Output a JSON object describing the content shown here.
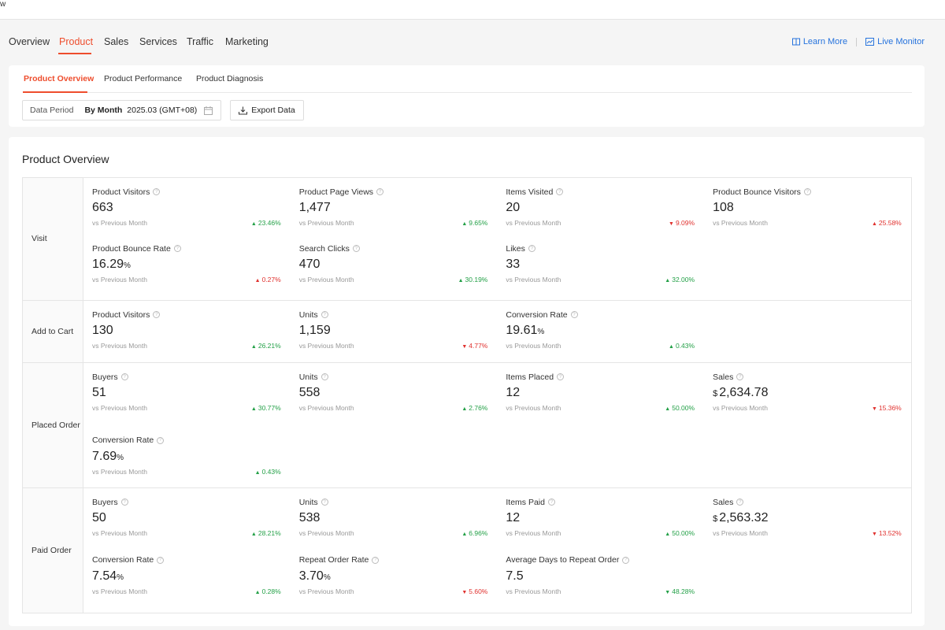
{
  "top_fragment": "w",
  "main_tabs": [
    "Overview",
    "Product",
    "Sales",
    "Services",
    "Traffic",
    "Marketing"
  ],
  "main_tab_active": "Product",
  "links": {
    "learn_more": "Learn More",
    "live_monitor": "Live Monitor"
  },
  "sub_tabs": [
    "Product Overview",
    "Product Performance",
    "Product Diagnosis"
  ],
  "sub_tab_active": "Product Overview",
  "filter": {
    "label": "Data Period",
    "mode": "By Month",
    "value": "2025.03 (GMT+08)",
    "export": "Export Data"
  },
  "section_title": "Product Overview",
  "compare_text": "vs Previous Month",
  "colors": {
    "accent": "#ee4d2d",
    "link": "#2673dd",
    "up": "#23a047",
    "down": "#e0312e"
  },
  "sections": [
    {
      "label": "Visit",
      "metrics": [
        {
          "label": "Product Visitors",
          "value": "663",
          "change": "23.46%",
          "dir": "up",
          "tone": "good"
        },
        {
          "label": "Product Page Views",
          "value": "1,477",
          "change": "9.65%",
          "dir": "up",
          "tone": "good"
        },
        {
          "label": "Items Visited",
          "value": "20",
          "change": "9.09%",
          "dir": "down",
          "tone": "bad"
        },
        {
          "label": "Product Bounce Visitors",
          "value": "108",
          "change": "25.58%",
          "dir": "up",
          "tone": "bad"
        },
        {
          "label": "Product Bounce Rate",
          "value": "16.29",
          "unit": "%",
          "change": "0.27%",
          "dir": "up",
          "tone": "bad"
        },
        {
          "label": "Search Clicks",
          "value": "470",
          "change": "30.19%",
          "dir": "up",
          "tone": "good"
        },
        {
          "label": "Likes",
          "value": "33",
          "change": "32.00%",
          "dir": "up",
          "tone": "good"
        }
      ]
    },
    {
      "label": "Add to Cart",
      "metrics": [
        {
          "label": "Product Visitors",
          "value": "130",
          "change": "26.21%",
          "dir": "up",
          "tone": "good"
        },
        {
          "label": "Units",
          "value": "1,159",
          "change": "4.77%",
          "dir": "down",
          "tone": "bad"
        },
        {
          "label": "Conversion Rate",
          "value": "19.61",
          "unit": "%",
          "change": "0.43%",
          "dir": "up",
          "tone": "good"
        }
      ]
    },
    {
      "label": "Placed Order",
      "metrics": [
        {
          "label": "Buyers",
          "value": "51",
          "change": "30.77%",
          "dir": "up",
          "tone": "good"
        },
        {
          "label": "Units",
          "value": "558",
          "change": "2.76%",
          "dir": "up",
          "tone": "good"
        },
        {
          "label": "Items Placed",
          "value": "12",
          "change": "50.00%",
          "dir": "up",
          "tone": "good"
        },
        {
          "label": "Sales",
          "currency": "$",
          "value": "2,634.78",
          "change": "15.36%",
          "dir": "down",
          "tone": "bad"
        },
        {
          "label": "Conversion Rate",
          "value": "7.69",
          "unit": "%",
          "change": "0.43%",
          "dir": "up",
          "tone": "good"
        }
      ]
    },
    {
      "label": "Paid Order",
      "metrics": [
        {
          "label": "Buyers",
          "value": "50",
          "change": "28.21%",
          "dir": "up",
          "tone": "good"
        },
        {
          "label": "Units",
          "value": "538",
          "change": "6.96%",
          "dir": "up",
          "tone": "good"
        },
        {
          "label": "Items Paid",
          "value": "12",
          "change": "50.00%",
          "dir": "up",
          "tone": "good"
        },
        {
          "label": "Sales",
          "currency": "$",
          "value": "2,563.32",
          "change": "13.52%",
          "dir": "down",
          "tone": "bad"
        },
        {
          "label": "Conversion Rate",
          "value": "7.54",
          "unit": "%",
          "change": "0.28%",
          "dir": "up",
          "tone": "good"
        },
        {
          "label": "Repeat Order Rate",
          "value": "3.70",
          "unit": "%",
          "change": "5.60%",
          "dir": "down",
          "tone": "bad"
        },
        {
          "label": "Average Days to Repeat Order",
          "value": "7.5",
          "change": "48.28%",
          "dir": "down",
          "tone": "good"
        }
      ]
    }
  ]
}
